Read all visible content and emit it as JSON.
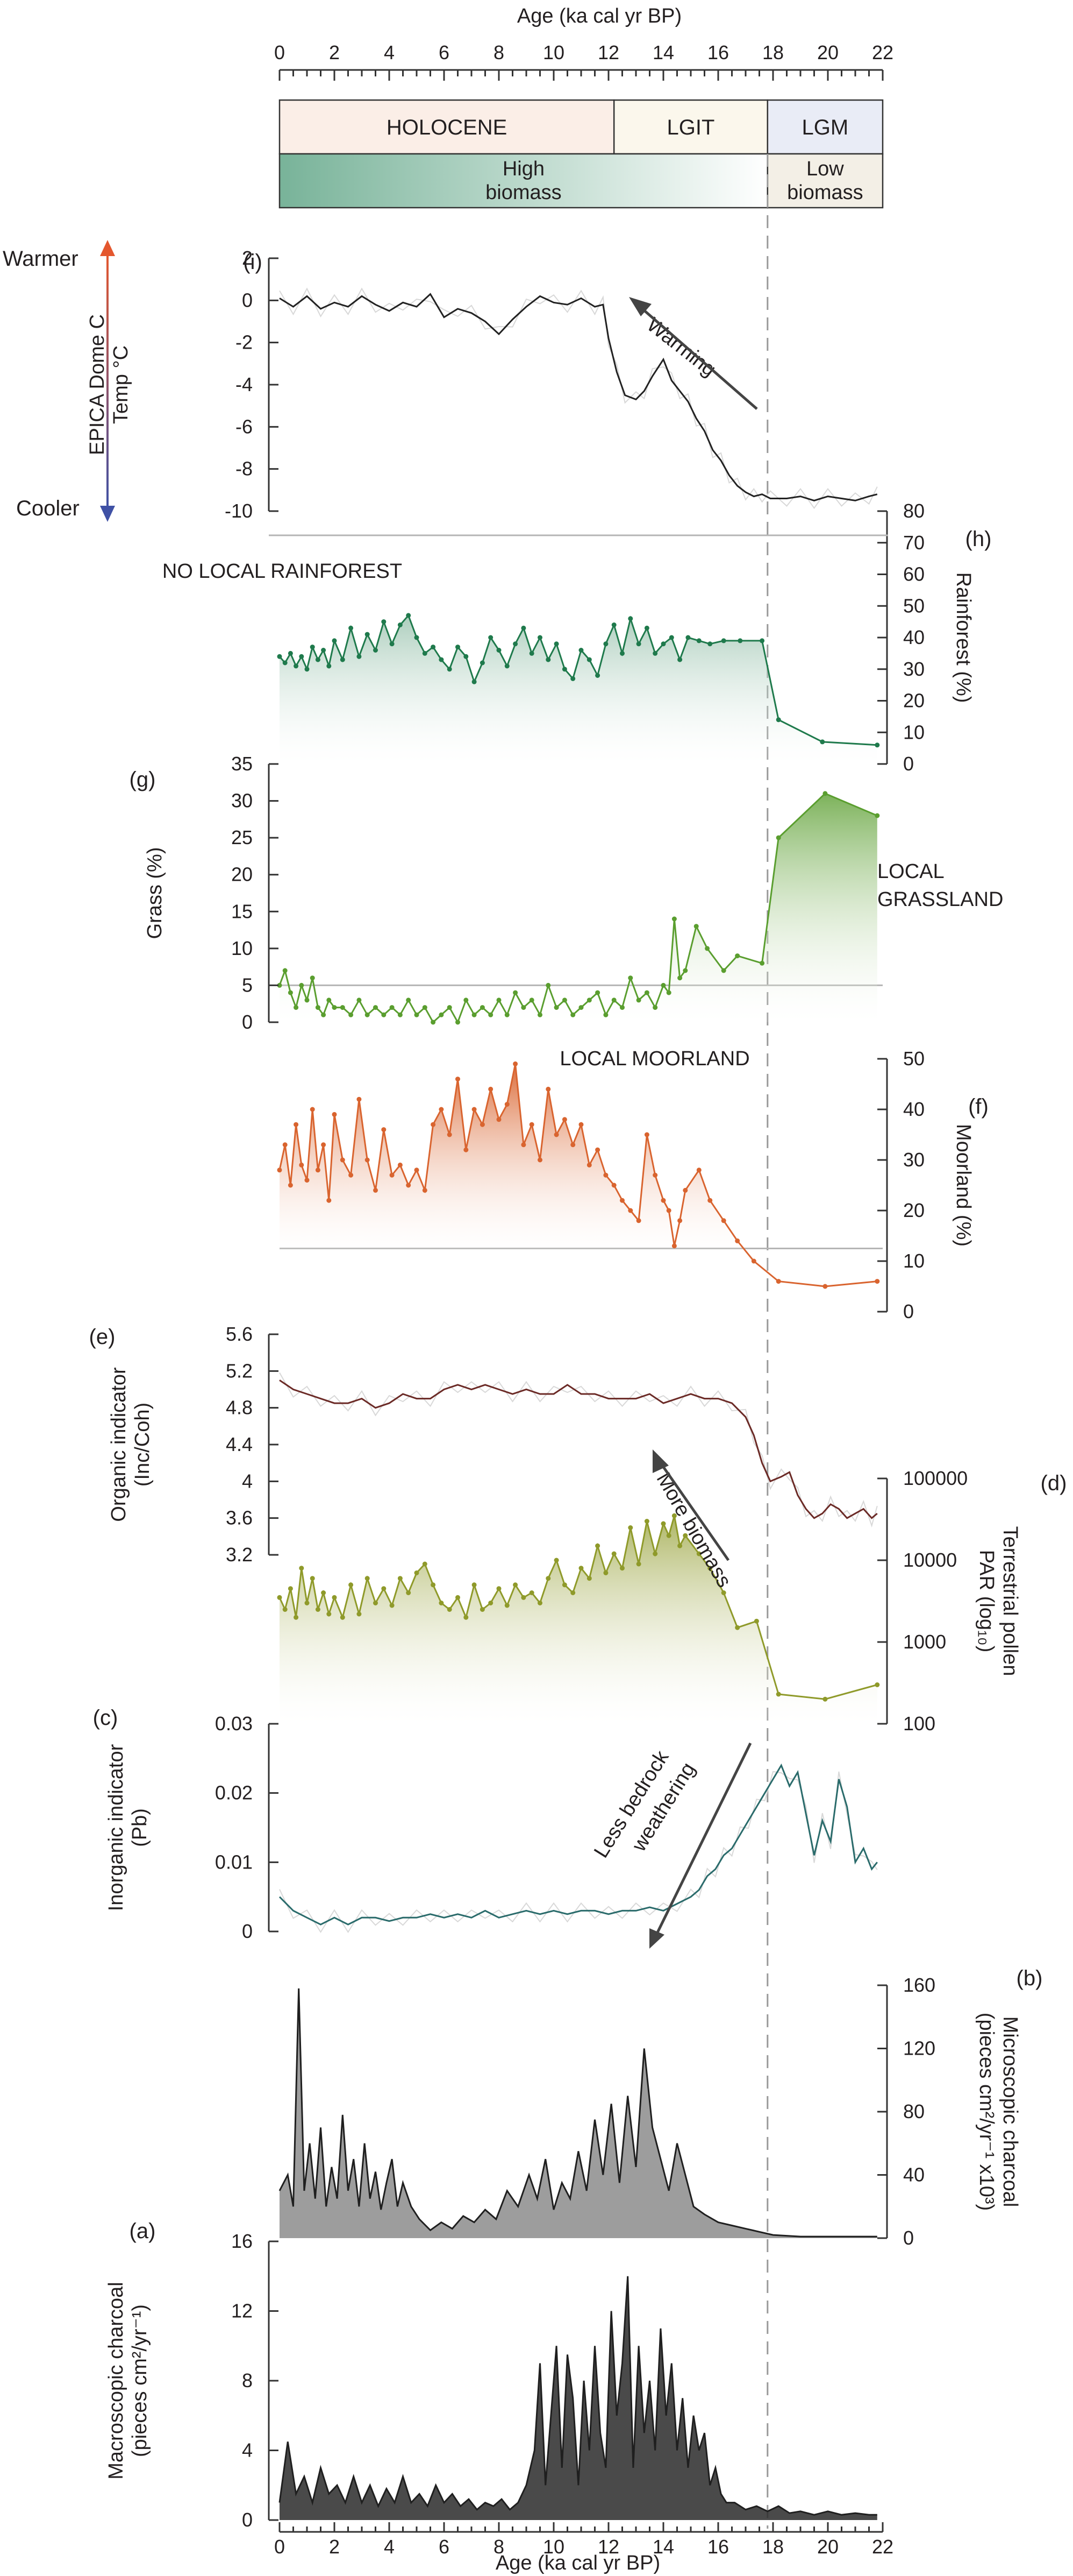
{
  "age_axis": {
    "title": "Age (ka cal yr BP)",
    "ticks": [
      0,
      2,
      4,
      6,
      8,
      10,
      12,
      14,
      16,
      18,
      20,
      22
    ],
    "range": [
      0,
      22
    ]
  },
  "periods": {
    "holocene": "HOLOCENE",
    "lgit": "LGIT",
    "lgm": "LGM",
    "holocene_range": [
      0,
      12.2
    ],
    "lgit_range": [
      12.2,
      17.8
    ],
    "lgm_range": [
      17.8,
      22
    ],
    "colors": {
      "holocene": "#fbeee7",
      "lgit": "#fbf7ec",
      "lgm": "#e9ecf6"
    }
  },
  "biomass": {
    "high_line1": "High",
    "high_line2": "biomass",
    "low_line1": "Low",
    "low_line2": "biomass",
    "gradient": [
      "#78b399",
      "#ffffff"
    ]
  },
  "temperature_scale": {
    "warmer": "Warmer",
    "cooler": "Cooler",
    "warm_color": "#e4572e",
    "cool_color": "#3f51a5"
  },
  "dashed_line_age": 17.8,
  "annotations": {
    "warming": "Warming",
    "no_local_rainforest": "NO LOCAL RAINFOREST",
    "local_grassland_1": "LOCAL",
    "local_grassland_2": "GRASSLAND",
    "local_moorland": "LOCAL MOORLAND",
    "more_biomass": "More biomass",
    "less_weathering_1": "Less bedrock",
    "less_weathering_2": "weathering"
  },
  "chart_data": [
    {
      "id": "i",
      "panel_label": "(i)",
      "type": "line",
      "ylabel_1": "EPICA Dome C",
      "ylabel_2": "Temp °C",
      "ylim": [
        -10,
        2
      ],
      "yticks": [
        2,
        0,
        -2,
        -4,
        -6,
        -8,
        -10
      ],
      "color": "#222222",
      "x": [
        0,
        0.5,
        1,
        1.5,
        2,
        2.5,
        3,
        3.5,
        4,
        4.5,
        5,
        5.5,
        6,
        6.5,
        7,
        7.5,
        8,
        8.5,
        9,
        9.5,
        10,
        10.5,
        11,
        11.5,
        11.8,
        12,
        12.3,
        12.6,
        13,
        13.3,
        13.6,
        14,
        14.3,
        14.6,
        14.9,
        15.2,
        15.5,
        15.8,
        16.1,
        16.4,
        16.7,
        17,
        17.3,
        17.6,
        17.9,
        18.5,
        19,
        19.5,
        20,
        20.5,
        21,
        21.5,
        21.8
      ],
      "values": [
        0.1,
        -0.3,
        0.2,
        -0.4,
        -0.1,
        -0.3,
        0.2,
        -0.2,
        -0.5,
        -0.1,
        -0.3,
        0.3,
        -0.8,
        -0.4,
        -0.6,
        -1.0,
        -1.6,
        -0.9,
        -0.3,
        0.2,
        -0.1,
        -0.2,
        0.1,
        -0.3,
        -0.2,
        -1.8,
        -3.4,
        -4.5,
        -4.7,
        -4.3,
        -3.6,
        -2.8,
        -3.8,
        -4.3,
        -4.8,
        -5.6,
        -6.2,
        -7.1,
        -7.6,
        -8.3,
        -8.8,
        -9.1,
        -9.3,
        -9.2,
        -9.4,
        -9.4,
        -9.3,
        -9.5,
        -9.3,
        -9.4,
        -9.5,
        -9.3,
        -9.2
      ]
    },
    {
      "id": "h",
      "panel_label": "(h)",
      "type": "area",
      "ylabel": "Rainforest (%)",
      "ylim": [
        0,
        80
      ],
      "yticks": [
        0,
        10,
        20,
        30,
        40,
        50,
        60,
        70,
        80
      ],
      "color": "#1f7a4c",
      "x": [
        0,
        0.2,
        0.4,
        0.6,
        0.8,
        1,
        1.2,
        1.4,
        1.6,
        1.8,
        2,
        2.3,
        2.6,
        2.9,
        3.2,
        3.5,
        3.8,
        4.1,
        4.4,
        4.7,
        5,
        5.3,
        5.6,
        5.9,
        6.2,
        6.5,
        6.8,
        7.1,
        7.4,
        7.7,
        8,
        8.3,
        8.6,
        8.9,
        9.2,
        9.5,
        9.8,
        10.1,
        10.4,
        10.7,
        11,
        11.3,
        11.6,
        11.9,
        12.2,
        12.5,
        12.8,
        13.1,
        13.4,
        13.7,
        14,
        14.3,
        14.6,
        14.9,
        15.3,
        15.7,
        16.2,
        16.8,
        17.6,
        18.2,
        19.8,
        21.8
      ],
      "values": [
        34,
        32,
        35,
        31,
        34,
        30,
        37,
        33,
        36,
        31,
        39,
        33,
        43,
        34,
        41,
        36,
        45,
        38,
        44,
        47,
        40,
        35,
        37,
        33,
        30,
        37,
        34,
        26,
        32,
        40,
        36,
        31,
        38,
        43,
        35,
        40,
        33,
        38,
        30,
        27,
        36,
        33,
        28,
        38,
        44,
        35,
        46,
        38,
        43,
        35,
        38,
        40,
        33,
        40,
        39,
        38,
        39,
        39,
        39,
        14,
        7,
        6
      ]
    },
    {
      "id": "g",
      "panel_label": "(g)",
      "type": "area",
      "ylabel": "Grass (%)",
      "ylim": [
        0,
        35
      ],
      "yticks": [
        0,
        5,
        10,
        15,
        20,
        25,
        30,
        35
      ],
      "reference": 5,
      "color": "#5a9e2f",
      "x": [
        0,
        0.2,
        0.4,
        0.6,
        0.8,
        1,
        1.2,
        1.4,
        1.6,
        1.8,
        2,
        2.3,
        2.6,
        2.9,
        3.2,
        3.5,
        3.8,
        4.1,
        4.4,
        4.7,
        5,
        5.3,
        5.6,
        5.9,
        6.2,
        6.5,
        6.8,
        7.1,
        7.4,
        7.7,
        8,
        8.3,
        8.6,
        8.9,
        9.2,
        9.5,
        9.8,
        10.1,
        10.4,
        10.7,
        11,
        11.3,
        11.6,
        11.9,
        12.2,
        12.5,
        12.8,
        13.1,
        13.4,
        13.7,
        14,
        14.2,
        14.4,
        14.6,
        14.8,
        15.2,
        15.6,
        16.2,
        16.7,
        17.6,
        18.2,
        19.9,
        21.8
      ],
      "values": [
        5,
        7,
        4,
        2,
        5,
        3,
        6,
        2,
        1,
        3,
        2,
        2,
        1,
        3,
        1,
        2,
        1,
        2,
        1,
        3,
        1,
        2,
        0,
        1,
        2,
        0,
        3,
        1,
        2,
        1,
        3,
        1,
        4,
        2,
        3,
        1,
        5,
        2,
        3,
        1,
        2,
        3,
        4,
        1,
        3,
        2,
        6,
        3,
        4,
        2,
        5,
        4,
        14,
        6,
        7,
        13,
        10,
        7,
        9,
        8,
        25,
        31,
        28
      ]
    },
    {
      "id": "f",
      "panel_label": "(f)",
      "type": "area",
      "ylabel": "Moorland (%)",
      "ylim": [
        0,
        50
      ],
      "yticks": [
        0,
        10,
        20,
        30,
        40,
        50
      ],
      "reference": 12.5,
      "color": "#d9642f",
      "x": [
        0,
        0.2,
        0.4,
        0.6,
        0.8,
        1,
        1.2,
        1.4,
        1.6,
        1.8,
        2,
        2.3,
        2.6,
        2.9,
        3.2,
        3.5,
        3.8,
        4.1,
        4.4,
        4.7,
        5,
        5.3,
        5.6,
        5.9,
        6.2,
        6.5,
        6.8,
        7.1,
        7.4,
        7.7,
        8,
        8.3,
        8.6,
        8.9,
        9.2,
        9.5,
        9.8,
        10.1,
        10.4,
        10.7,
        11,
        11.3,
        11.6,
        11.9,
        12.2,
        12.5,
        12.8,
        13.1,
        13.4,
        13.7,
        14,
        14.2,
        14.4,
        14.6,
        14.8,
        15.3,
        15.7,
        16.2,
        16.7,
        17.3,
        18.2,
        19.9,
        21.8
      ],
      "values": [
        28,
        33,
        25,
        37,
        29,
        26,
        40,
        28,
        33,
        22,
        39,
        30,
        27,
        42,
        30,
        24,
        36,
        27,
        29,
        25,
        28,
        24,
        37,
        40,
        35,
        46,
        32,
        40,
        37,
        44,
        38,
        41,
        49,
        33,
        37,
        30,
        44,
        35,
        38,
        33,
        37,
        29,
        32,
        27,
        25,
        22,
        20,
        18,
        35,
        27,
        22,
        20,
        13,
        18,
        24,
        28,
        22,
        18,
        14,
        10,
        6,
        5,
        6
      ]
    },
    {
      "id": "e",
      "panel_label": "(e)",
      "type": "line",
      "ylabel_1": "Organic indicator",
      "ylabel_2": "(Inc/Coh)",
      "ylim": [
        3.2,
        5.6
      ],
      "yticks": [
        5.6,
        5.2,
        4.8,
        4.4,
        4,
        3.6,
        3.2
      ],
      "color": "#6b2a26",
      "x": [
        0,
        0.5,
        1,
        1.5,
        2,
        2.5,
        3,
        3.5,
        4,
        4.5,
        5,
        5.5,
        6,
        6.5,
        7,
        7.5,
        8,
        8.5,
        9,
        9.5,
        10,
        10.5,
        11,
        11.5,
        12,
        12.5,
        13,
        13.5,
        14,
        14.5,
        15,
        15.5,
        16,
        16.5,
        17,
        17.3,
        17.6,
        17.9,
        18.3,
        18.6,
        18.9,
        19.2,
        19.5,
        19.8,
        20.1,
        20.4,
        20.7,
        21,
        21.3,
        21.6,
        21.8
      ],
      "values": [
        5.1,
        5.0,
        4.95,
        4.9,
        4.85,
        4.85,
        4.9,
        4.8,
        4.85,
        4.95,
        4.9,
        4.9,
        5.0,
        5.05,
        5.0,
        5.05,
        5.0,
        4.95,
        5.0,
        4.95,
        4.95,
        5.05,
        4.95,
        4.95,
        4.9,
        4.9,
        4.9,
        4.95,
        4.85,
        4.9,
        4.95,
        4.9,
        4.9,
        4.85,
        4.7,
        4.5,
        4.2,
        4.0,
        4.05,
        4.1,
        3.85,
        3.7,
        3.6,
        3.65,
        3.75,
        3.7,
        3.6,
        3.65,
        3.7,
        3.6,
        3.65
      ]
    },
    {
      "id": "d",
      "panel_label": "(d)",
      "type": "area",
      "ylabel_1": "Terrestrial pollen",
      "ylabel_2": "PAR (log₁₀)",
      "scale": "log",
      "ylim": [
        100,
        100000
      ],
      "yticks": [
        100000,
        10000,
        1000,
        100
      ],
      "color": "#8f9a2a",
      "x": [
        0,
        0.2,
        0.4,
        0.6,
        0.8,
        1,
        1.2,
        1.4,
        1.6,
        1.8,
        2,
        2.3,
        2.6,
        2.9,
        3.2,
        3.5,
        3.8,
        4.1,
        4.4,
        4.7,
        5,
        5.3,
        5.6,
        5.9,
        6.2,
        6.5,
        6.8,
        7.1,
        7.4,
        7.7,
        8,
        8.3,
        8.6,
        8.9,
        9.2,
        9.5,
        9.8,
        10.1,
        10.4,
        10.7,
        11,
        11.3,
        11.6,
        11.9,
        12.2,
        12.5,
        12.8,
        13.1,
        13.4,
        13.7,
        14,
        14.2,
        14.4,
        14.6,
        14.8,
        15.3,
        15.7,
        16.2,
        16.7,
        17.4,
        18.2,
        19.9,
        21.8
      ],
      "values": [
        3500,
        2500,
        4500,
        2000,
        8000,
        3000,
        6000,
        2500,
        4000,
        2200,
        3500,
        2000,
        5000,
        2200,
        6000,
        3000,
        4500,
        2800,
        6000,
        4000,
        7000,
        9000,
        5000,
        3000,
        2500,
        3500,
        2000,
        5000,
        2500,
        3000,
        4500,
        2800,
        5000,
        3500,
        4000,
        3000,
        6000,
        10000,
        5000,
        4000,
        8000,
        6000,
        15000,
        7000,
        12000,
        8000,
        25000,
        9000,
        30000,
        12000,
        28000,
        20000,
        35000,
        15000,
        20000,
        12000,
        8000,
        4000,
        1500,
        1800,
        230,
        200,
        300
      ]
    },
    {
      "id": "c",
      "panel_label": "(c)",
      "type": "line",
      "ylabel_1": "Inorganic indicator",
      "ylabel_2": "(Pb)",
      "ylim": [
        0,
        0.03
      ],
      "yticks": [
        0.03,
        0.02,
        0.01,
        0
      ],
      "color": "#2a6b6b",
      "x": [
        0,
        0.5,
        1,
        1.5,
        2,
        2.5,
        3,
        3.5,
        4,
        4.5,
        5,
        5.5,
        6,
        6.5,
        7,
        7.5,
        8,
        8.5,
        9,
        9.5,
        10,
        10.5,
        11,
        11.5,
        12,
        12.5,
        13,
        13.5,
        14,
        14.5,
        15,
        15.3,
        15.6,
        15.9,
        16.2,
        16.5,
        16.8,
        17.1,
        17.4,
        17.7,
        18,
        18.3,
        18.6,
        18.9,
        19.2,
        19.5,
        19.8,
        20.1,
        20.4,
        20.7,
        21,
        21.3,
        21.6,
        21.8
      ],
      "values": [
        0.005,
        0.003,
        0.002,
        0.001,
        0.002,
        0.001,
        0.002,
        0.002,
        0.0015,
        0.002,
        0.002,
        0.0025,
        0.002,
        0.0025,
        0.002,
        0.003,
        0.002,
        0.0025,
        0.003,
        0.0025,
        0.003,
        0.0025,
        0.003,
        0.003,
        0.0025,
        0.003,
        0.003,
        0.0035,
        0.003,
        0.004,
        0.005,
        0.006,
        0.008,
        0.009,
        0.011,
        0.012,
        0.014,
        0.016,
        0.018,
        0.02,
        0.022,
        0.024,
        0.021,
        0.023,
        0.017,
        0.011,
        0.016,
        0.013,
        0.022,
        0.018,
        0.01,
        0.012,
        0.009,
        0.01
      ]
    },
    {
      "id": "b",
      "panel_label": "(b)",
      "type": "area",
      "ylabel_1": "Microscopic charcoal",
      "ylabel_2": "(pieces cm²/yr⁻¹ x10³)",
      "ylim": [
        0,
        160
      ],
      "yticks": [
        0,
        40,
        80,
        120,
        160
      ],
      "color": "#8c8c8c",
      "x": [
        0,
        0.3,
        0.5,
        0.7,
        0.9,
        1.1,
        1.3,
        1.5,
        1.7,
        1.9,
        2.1,
        2.3,
        2.5,
        2.7,
        2.9,
        3.1,
        3.3,
        3.5,
        3.7,
        3.9,
        4.1,
        4.3,
        4.5,
        4.8,
        5.1,
        5.5,
        5.9,
        6.3,
        6.7,
        7.1,
        7.5,
        7.9,
        8.3,
        8.7,
        9.1,
        9.4,
        9.7,
        10,
        10.3,
        10.6,
        10.9,
        11.2,
        11.5,
        11.8,
        12.1,
        12.4,
        12.7,
        13,
        13.3,
        13.6,
        13.9,
        14.2,
        14.5,
        14.8,
        15.1,
        15.5,
        16,
        16.5,
        17,
        17.5,
        18,
        19,
        20,
        21,
        21.8
      ],
      "values": [
        30,
        40,
        20,
        158,
        30,
        60,
        25,
        70,
        20,
        45,
        25,
        78,
        30,
        50,
        20,
        60,
        25,
        42,
        18,
        35,
        50,
        20,
        35,
        20,
        12,
        5,
        10,
        6,
        14,
        10,
        18,
        12,
        30,
        20,
        40,
        25,
        50,
        18,
        35,
        25,
        55,
        30,
        75,
        40,
        85,
        35,
        90,
        45,
        120,
        70,
        50,
        30,
        60,
        40,
        20,
        15,
        10,
        8,
        6,
        4,
        2,
        1,
        1,
        1,
        1
      ]
    },
    {
      "id": "a",
      "panel_label": "(a)",
      "type": "area",
      "ylabel_1": "Macroscopic charcoal",
      "ylabel_2": "(pieces cm²/yr⁻¹)",
      "ylim": [
        0,
        16
      ],
      "yticks": [
        16,
        12,
        8,
        4,
        0
      ],
      "color": "#2a2a2a",
      "x": [
        0,
        0.3,
        0.6,
        0.9,
        1.2,
        1.5,
        1.8,
        2.1,
        2.4,
        2.7,
        3,
        3.3,
        3.6,
        3.9,
        4.2,
        4.5,
        4.8,
        5.1,
        5.4,
        5.7,
        6,
        6.3,
        6.6,
        6.9,
        7.2,
        7.5,
        7.8,
        8.1,
        8.4,
        8.7,
        9,
        9.3,
        9.5,
        9.7,
        9.9,
        10.1,
        10.3,
        10.5,
        10.7,
        10.9,
        11.1,
        11.3,
        11.5,
        11.7,
        11.9,
        12.1,
        12.3,
        12.5,
        12.7,
        12.9,
        13.1,
        13.3,
        13.5,
        13.7,
        13.9,
        14.1,
        14.3,
        14.5,
        14.7,
        14.9,
        15.1,
        15.3,
        15.5,
        15.7,
        15.9,
        16.1,
        16.3,
        16.6,
        17,
        17.4,
        17.8,
        18.2,
        18.6,
        19,
        19.5,
        20,
        20.5,
        21,
        21.5,
        21.8
      ],
      "values": [
        1,
        4.5,
        1.5,
        2.5,
        1,
        3,
        1.5,
        2,
        1,
        2.5,
        1,
        2,
        0.8,
        1.8,
        1,
        2.5,
        1,
        1.5,
        0.8,
        2,
        1,
        1.5,
        0.8,
        1.2,
        0.6,
        1,
        0.8,
        1.2,
        0.6,
        1,
        2,
        4,
        9,
        2,
        6,
        10,
        3,
        9.5,
        7,
        2,
        8,
        4,
        10,
        5,
        3,
        12,
        6,
        9,
        14,
        3,
        10,
        5,
        8,
        4,
        11,
        6,
        9,
        4,
        7,
        3,
        6,
        4,
        5,
        2,
        3,
        1.5,
        1,
        1,
        0.6,
        0.8,
        0.5,
        0.8,
        0.4,
        0.5,
        0.3,
        0.5,
        0.3,
        0.4,
        0.3,
        0.3
      ]
    }
  ]
}
